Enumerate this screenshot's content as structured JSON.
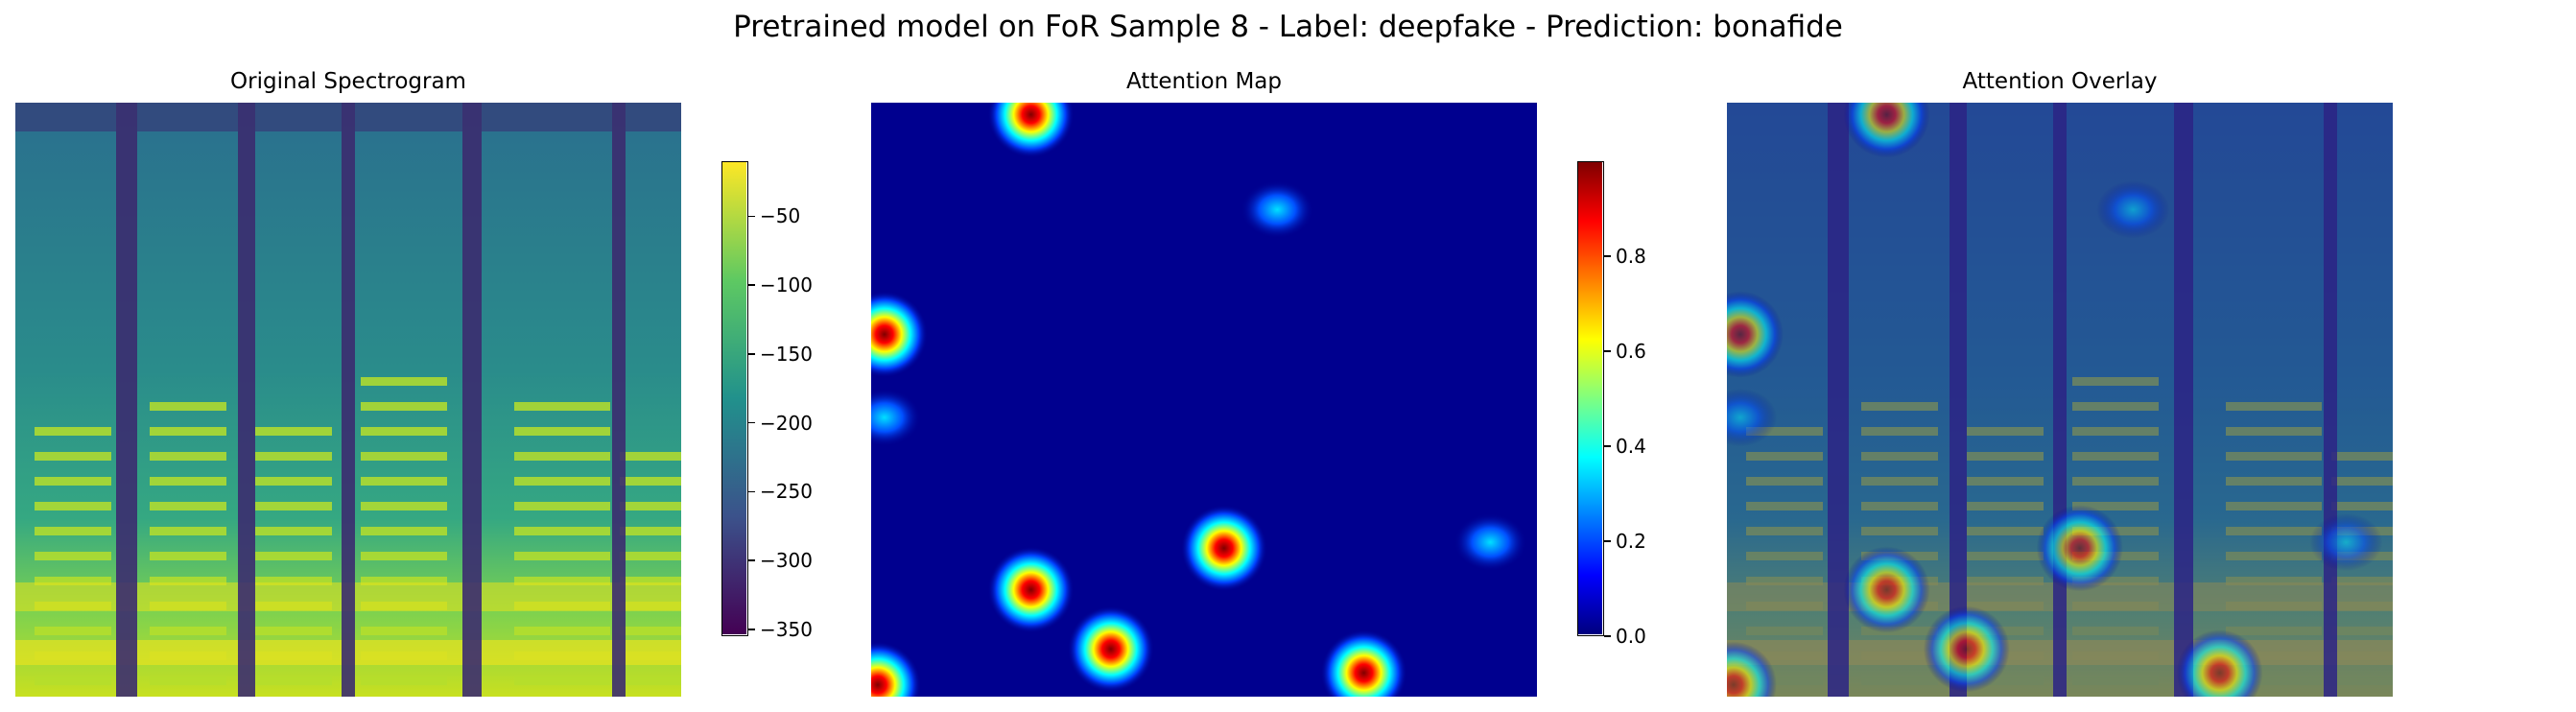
{
  "title": "Pretrained model on FoR Sample 8 - Label: deepfake - Prediction: bonafide",
  "chart_data": [
    {
      "type": "heatmap",
      "title": "Original Spectrogram",
      "colormap": "viridis",
      "colorbar": {
        "range": [
          -355,
          -10
        ],
        "ticks": [
          "−50",
          "−100",
          "−150",
          "−200",
          "−250",
          "−300",
          "−350"
        ],
        "tick_values": [
          -50,
          -100,
          -150,
          -200,
          -250,
          -300,
          -350
        ]
      }
    },
    {
      "type": "heatmap",
      "title": "Attention Map",
      "colormap": "jet",
      "colorbar": {
        "range": [
          0,
          1
        ],
        "ticks": [
          "0.0",
          "0.2",
          "0.4",
          "0.6",
          "0.8"
        ],
        "tick_values": [
          0.0,
          0.2,
          0.4,
          0.6,
          0.8
        ]
      },
      "hotspots": [
        {
          "x": 0.24,
          "y": 0.02,
          "v": 1.0
        },
        {
          "x": 0.61,
          "y": 0.18,
          "v": 0.42
        },
        {
          "x": 0.02,
          "y": 0.39,
          "v": 1.0
        },
        {
          "x": 0.02,
          "y": 0.53,
          "v": 0.28
        },
        {
          "x": 0.53,
          "y": 0.75,
          "v": 0.95
        },
        {
          "x": 0.24,
          "y": 0.82,
          "v": 0.95
        },
        {
          "x": 0.93,
          "y": 0.74,
          "v": 0.3
        },
        {
          "x": 0.74,
          "y": 0.96,
          "v": 0.85
        },
        {
          "x": 0.01,
          "y": 0.98,
          "v": 1.0
        },
        {
          "x": 0.36,
          "y": 0.92,
          "v": 1.0
        }
      ]
    },
    {
      "type": "heatmap",
      "title": "Attention Overlay",
      "colormap": "jet+viridis"
    }
  ]
}
